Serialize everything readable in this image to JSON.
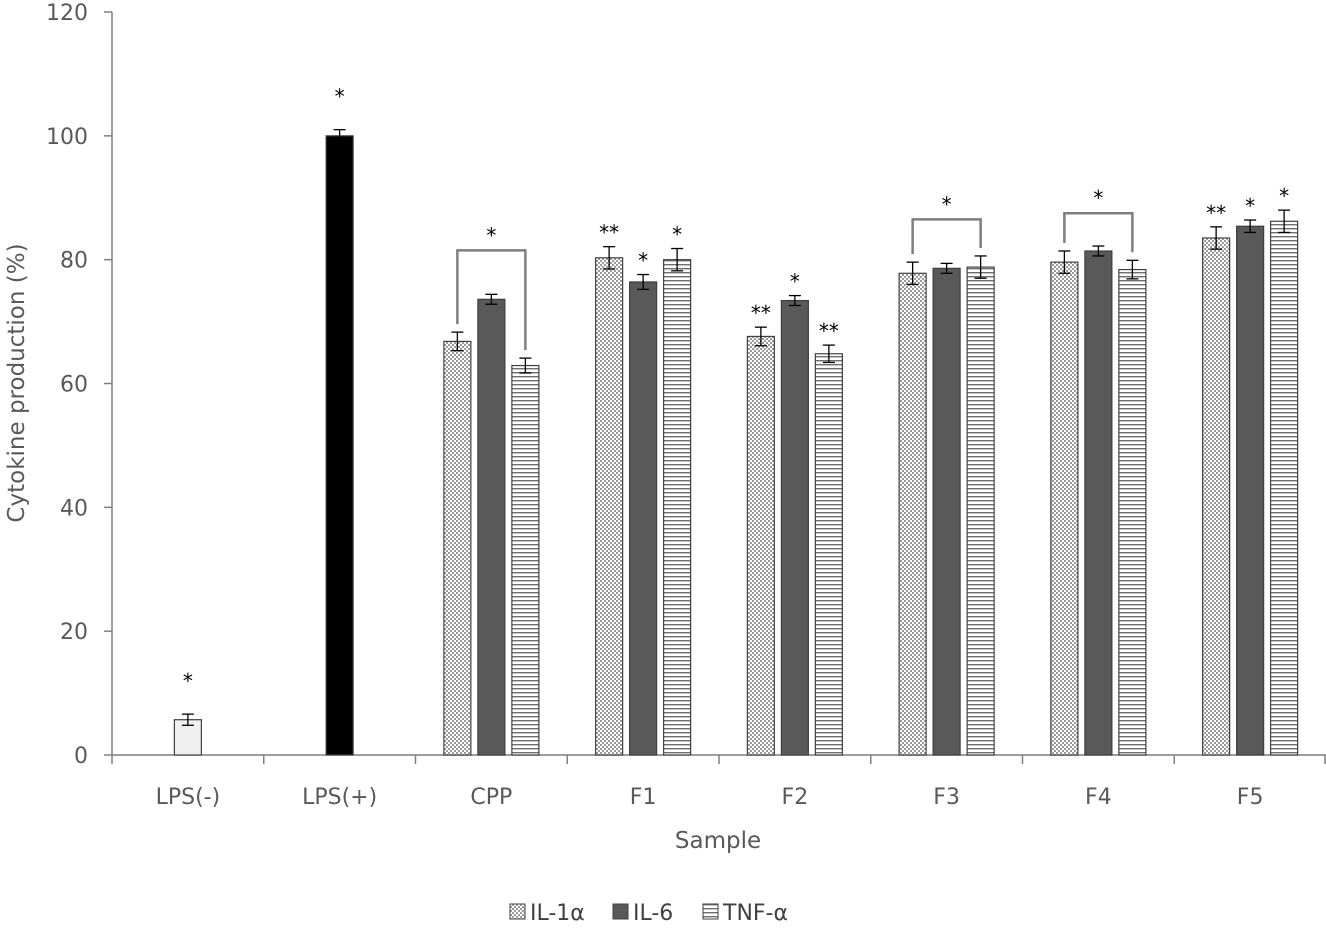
{
  "chart_data": {
    "type": "bar",
    "xlabel": "Sample",
    "ylabel": "Cytokine production (%)",
    "ylim": [
      0,
      120
    ],
    "yticks": [
      0,
      20,
      40,
      60,
      80,
      100,
      120
    ],
    "grid": false,
    "legend_position": "bottom",
    "categories": [
      "LPS(-)",
      "LPS(+)",
      "CPP",
      "F1",
      "F2",
      "F3",
      "F4",
      "F5"
    ],
    "series": [
      {
        "name": "IL-1α",
        "pattern": "dots",
        "values": [
          null,
          null,
          66.8,
          80.3,
          67.6,
          77.8,
          79.6,
          83.5
        ],
        "errors": [
          null,
          null,
          1.5,
          1.8,
          1.5,
          1.8,
          1.8,
          1.8
        ],
        "annotations": [
          "",
          "",
          "",
          "**",
          "**",
          "",
          "",
          "**"
        ]
      },
      {
        "name": "IL-6",
        "pattern": "solid",
        "values": [
          null,
          null,
          73.6,
          76.4,
          73.4,
          78.6,
          81.4,
          85.4
        ],
        "errors": [
          null,
          null,
          0.8,
          1.2,
          0.8,
          0.8,
          0.8,
          1.0
        ],
        "annotations": [
          "",
          "",
          "",
          "*",
          "*",
          "",
          "",
          "*"
        ]
      },
      {
        "name": "TNF-α",
        "pattern": "horizontal-lines",
        "values": [
          null,
          null,
          62.9,
          80.0,
          64.8,
          78.8,
          78.4,
          86.2
        ],
        "errors": [
          null,
          null,
          1.2,
          1.8,
          1.4,
          1.8,
          1.5,
          1.8
        ],
        "annotations": [
          "",
          "",
          "",
          "*",
          "**",
          "",
          "",
          "*"
        ]
      }
    ],
    "controls": [
      {
        "category": "LPS(-)",
        "value": 5.7,
        "error": 0.9,
        "fill": "#f0f0f0",
        "annotation": "*"
      },
      {
        "category": "LPS(+)",
        "value": 100,
        "error": 1.0,
        "fill": "#000000",
        "annotation": "*"
      }
    ],
    "brackets": [
      {
        "category": "CPP",
        "height": 81.5,
        "label": "*"
      },
      {
        "category": "F3",
        "height": 86.5,
        "label": "*"
      },
      {
        "category": "F4",
        "height": 87.5,
        "label": "*"
      }
    ],
    "colors": {
      "series_fill": "#595959",
      "dots_fill": "#bfbfbf",
      "lines_stroke": "#7f7f7f",
      "bar_outline": "#404040",
      "axis": "#7f7f7f",
      "bracket": "#7f7f7f"
    }
  }
}
